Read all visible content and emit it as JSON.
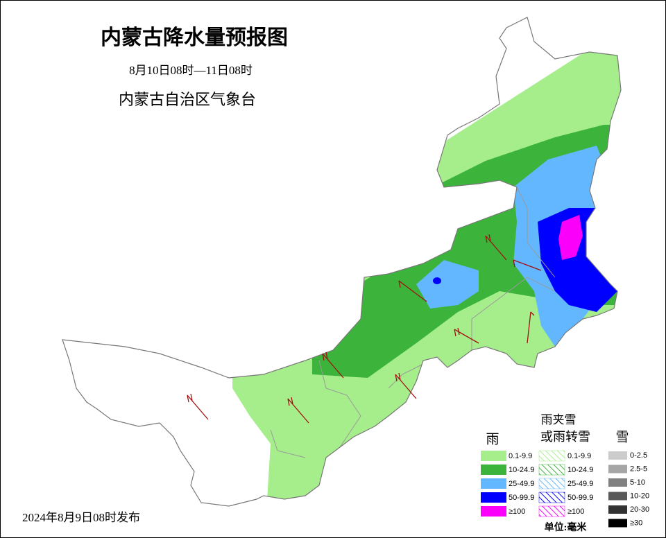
{
  "header": {
    "title": "内蒙古降水量预报图",
    "period": "8月10日08时—11日08时",
    "issuer": "内蒙古自治区气象台"
  },
  "footer": {
    "issued": "2024年8月9日08时发布"
  },
  "legend": {
    "rain": {
      "title": "雨",
      "items": [
        {
          "label": "0.1-9.9",
          "color": "#a6ee8c"
        },
        {
          "label": "10-24.9",
          "color": "#3cb43c"
        },
        {
          "label": "25-49.9",
          "color": "#63b7ff"
        },
        {
          "label": "50-99.9",
          "color": "#0000fe"
        },
        {
          "label": "≥100",
          "color": "#fa00fa"
        }
      ]
    },
    "sleet": {
      "title": [
        "雨夹雪",
        "或雨转雪"
      ],
      "items": [
        {
          "label": "0.1-9.9",
          "color": "#a6ee8c"
        },
        {
          "label": "10-24.9",
          "color": "#3cb43c"
        },
        {
          "label": "25-49.9",
          "color": "#63b7ff"
        },
        {
          "label": "50-99.9",
          "color": "#0000fe"
        },
        {
          "label": "≥100",
          "color": "#fa00fa"
        }
      ]
    },
    "snow": {
      "title": "雪",
      "items": [
        {
          "label": "0-2.5",
          "color": "#cccccc"
        },
        {
          "label": "2.5-5",
          "color": "#a6a6a6"
        },
        {
          "label": "5-10",
          "color": "#808080"
        },
        {
          "label": "10-20",
          "color": "#595959"
        },
        {
          "label": "20-30",
          "color": "#333333"
        },
        {
          "label": "≥30",
          "color": "#000000"
        }
      ]
    },
    "unit": "单位:毫米"
  }
}
